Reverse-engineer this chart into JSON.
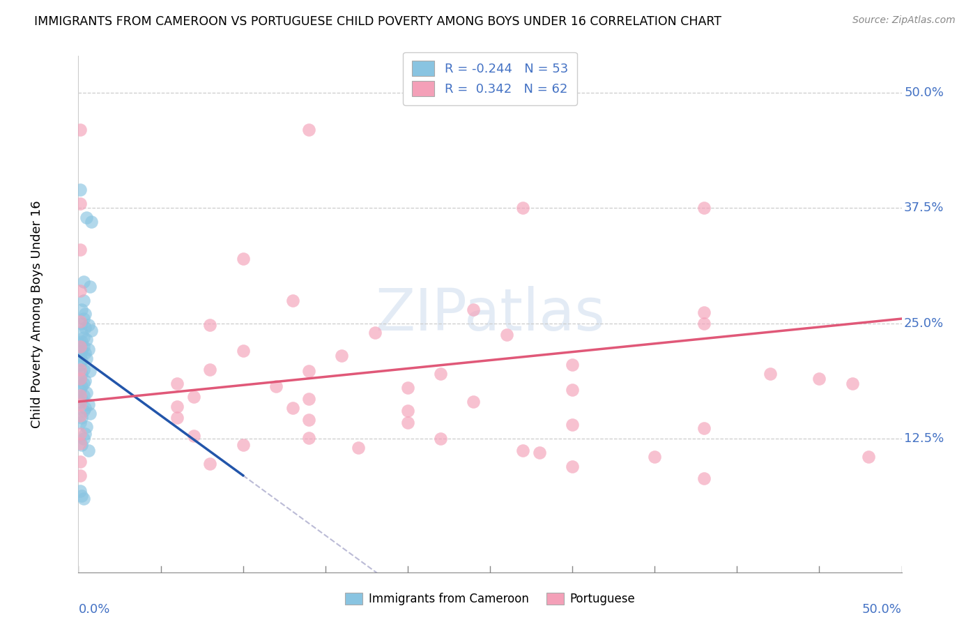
{
  "title": "IMMIGRANTS FROM CAMEROON VS PORTUGUESE CHILD POVERTY AMONG BOYS UNDER 16 CORRELATION CHART",
  "source": "Source: ZipAtlas.com",
  "ylabel": "Child Poverty Among Boys Under 16",
  "xlim": [
    0.0,
    0.5
  ],
  "ylim": [
    -0.02,
    0.54
  ],
  "watermark": "ZIPatlas",
  "blue_color": "#89c4e1",
  "pink_color": "#f4a0b8",
  "blue_line_color": "#2255aa",
  "pink_line_color": "#e05878",
  "gray_dash_color": "#aaaacc",
  "blue_scatter": [
    [
      0.001,
      0.395
    ],
    [
      0.005,
      0.365
    ],
    [
      0.008,
      0.36
    ],
    [
      0.003,
      0.295
    ],
    [
      0.007,
      0.29
    ],
    [
      0.003,
      0.275
    ],
    [
      0.002,
      0.265
    ],
    [
      0.004,
      0.26
    ],
    [
      0.003,
      0.255
    ],
    [
      0.002,
      0.25
    ],
    [
      0.006,
      0.248
    ],
    [
      0.004,
      0.245
    ],
    [
      0.008,
      0.242
    ],
    [
      0.002,
      0.24
    ],
    [
      0.003,
      0.235
    ],
    [
      0.005,
      0.232
    ],
    [
      0.002,
      0.23
    ],
    [
      0.001,
      0.228
    ],
    [
      0.003,
      0.225
    ],
    [
      0.006,
      0.222
    ],
    [
      0.002,
      0.22
    ],
    [
      0.004,
      0.218
    ],
    [
      0.001,
      0.215
    ],
    [
      0.005,
      0.212
    ],
    [
      0.002,
      0.21
    ],
    [
      0.001,
      0.205
    ],
    [
      0.003,
      0.2
    ],
    [
      0.007,
      0.198
    ],
    [
      0.002,
      0.195
    ],
    [
      0.001,
      0.19
    ],
    [
      0.004,
      0.188
    ],
    [
      0.003,
      0.185
    ],
    [
      0.002,
      0.182
    ],
    [
      0.001,
      0.178
    ],
    [
      0.005,
      0.175
    ],
    [
      0.003,
      0.172
    ],
    [
      0.002,
      0.168
    ],
    [
      0.001,
      0.165
    ],
    [
      0.006,
      0.162
    ],
    [
      0.004,
      0.158
    ],
    [
      0.003,
      0.155
    ],
    [
      0.007,
      0.152
    ],
    [
      0.002,
      0.148
    ],
    [
      0.001,
      0.142
    ],
    [
      0.005,
      0.138
    ],
    [
      0.004,
      0.13
    ],
    [
      0.003,
      0.125
    ],
    [
      0.002,
      0.118
    ],
    [
      0.006,
      0.112
    ],
    [
      0.001,
      0.068
    ],
    [
      0.002,
      0.063
    ],
    [
      0.003,
      0.06
    ]
  ],
  "pink_scatter": [
    [
      0.001,
      0.46
    ],
    [
      0.14,
      0.46
    ],
    [
      0.001,
      0.38
    ],
    [
      0.27,
      0.375
    ],
    [
      0.38,
      0.375
    ],
    [
      0.001,
      0.33
    ],
    [
      0.1,
      0.32
    ],
    [
      0.001,
      0.285
    ],
    [
      0.13,
      0.275
    ],
    [
      0.24,
      0.265
    ],
    [
      0.38,
      0.262
    ],
    [
      0.001,
      0.252
    ],
    [
      0.08,
      0.248
    ],
    [
      0.18,
      0.24
    ],
    [
      0.26,
      0.238
    ],
    [
      0.38,
      0.25
    ],
    [
      0.001,
      0.225
    ],
    [
      0.1,
      0.22
    ],
    [
      0.16,
      0.215
    ],
    [
      0.001,
      0.2
    ],
    [
      0.08,
      0.2
    ],
    [
      0.14,
      0.198
    ],
    [
      0.22,
      0.195
    ],
    [
      0.3,
      0.205
    ],
    [
      0.001,
      0.19
    ],
    [
      0.06,
      0.185
    ],
    [
      0.12,
      0.182
    ],
    [
      0.2,
      0.18
    ],
    [
      0.3,
      0.178
    ],
    [
      0.001,
      0.172
    ],
    [
      0.07,
      0.17
    ],
    [
      0.14,
      0.168
    ],
    [
      0.24,
      0.165
    ],
    [
      0.001,
      0.162
    ],
    [
      0.06,
      0.16
    ],
    [
      0.13,
      0.158
    ],
    [
      0.2,
      0.155
    ],
    [
      0.001,
      0.15
    ],
    [
      0.06,
      0.148
    ],
    [
      0.14,
      0.145
    ],
    [
      0.2,
      0.142
    ],
    [
      0.3,
      0.14
    ],
    [
      0.38,
      0.136
    ],
    [
      0.001,
      0.13
    ],
    [
      0.07,
      0.128
    ],
    [
      0.14,
      0.126
    ],
    [
      0.22,
      0.125
    ],
    [
      0.001,
      0.12
    ],
    [
      0.1,
      0.118
    ],
    [
      0.17,
      0.115
    ],
    [
      0.27,
      0.112
    ],
    [
      0.001,
      0.1
    ],
    [
      0.08,
      0.098
    ],
    [
      0.3,
      0.095
    ],
    [
      0.001,
      0.085
    ],
    [
      0.38,
      0.082
    ],
    [
      0.42,
      0.195
    ],
    [
      0.45,
      0.19
    ],
    [
      0.47,
      0.185
    ],
    [
      0.48,
      0.105
    ],
    [
      0.28,
      0.11
    ],
    [
      0.35,
      0.105
    ]
  ]
}
